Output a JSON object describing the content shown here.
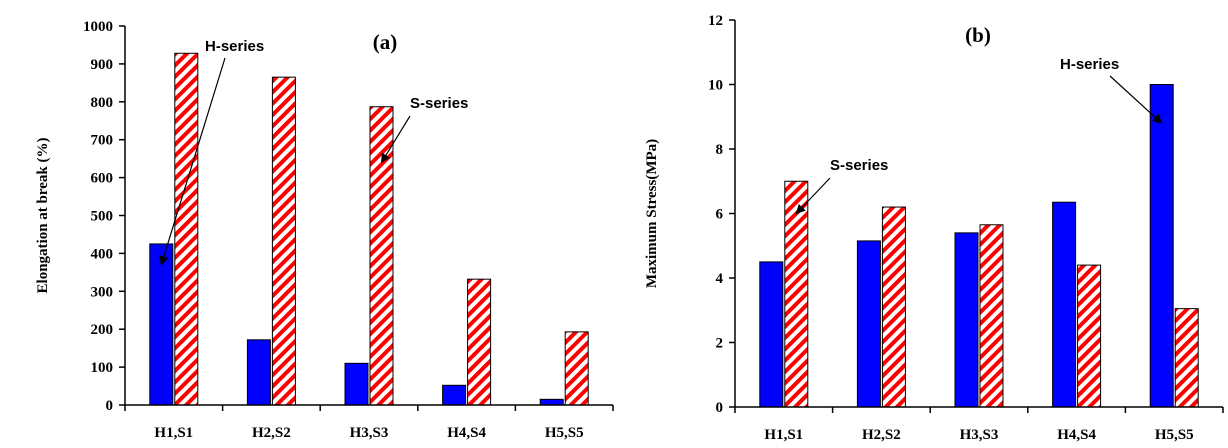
{
  "colors": {
    "h_series": "#0000ff",
    "s_series": "#ff0000",
    "axis": "#000000"
  },
  "chart_data": [
    {
      "type": "bar",
      "title": "(a)",
      "ylabel": "Elongation at break  (%)",
      "xlabel": "",
      "ylim": [
        0,
        1000
      ],
      "yticks": [
        "0",
        "100",
        "200",
        "300",
        "400",
        "500",
        "600",
        "700",
        "800",
        "900",
        "1000"
      ],
      "categories": [
        "H1,S1",
        "H2,S2",
        "H3,S3",
        "H4,S4",
        "H5,S5"
      ],
      "series": [
        {
          "values": [
            425,
            172,
            110,
            52,
            15
          ]
        },
        {
          "values": [
            928,
            865,
            787,
            332,
            193
          ]
        }
      ],
      "annotations": [
        {
          "text": "H-series",
          "series_index": 0,
          "category_index": 0,
          "target_value": 370
        },
        {
          "text": "S-series",
          "series_index": 1,
          "category_index": 2,
          "target_value": 640
        }
      ],
      "grid": false,
      "legend": "none"
    },
    {
      "type": "bar",
      "title": "(b)",
      "ylabel": "Maximum Stress(MPa)",
      "xlabel": "",
      "ylim": [
        0,
        12
      ],
      "yticks": [
        "0",
        "2",
        "4",
        "6",
        "8",
        "10",
        "12"
      ],
      "categories": [
        "H1,S1",
        "H2,S2",
        "H3,S3",
        "H4,S4",
        "H5,S5"
      ],
      "series": [
        {
          "values": [
            4.5,
            5.15,
            5.4,
            6.35,
            10.0
          ]
        },
        {
          "values": [
            7.0,
            6.2,
            5.65,
            4.4,
            3.05
          ]
        }
      ],
      "annotations": [
        {
          "text": "S-series",
          "series_index": 1,
          "category_index": 0,
          "target_value": 6.0
        },
        {
          "text": "H-series",
          "series_index": 0,
          "category_index": 4,
          "target_value": 8.8
        }
      ],
      "grid": false,
      "legend": "none"
    }
  ]
}
